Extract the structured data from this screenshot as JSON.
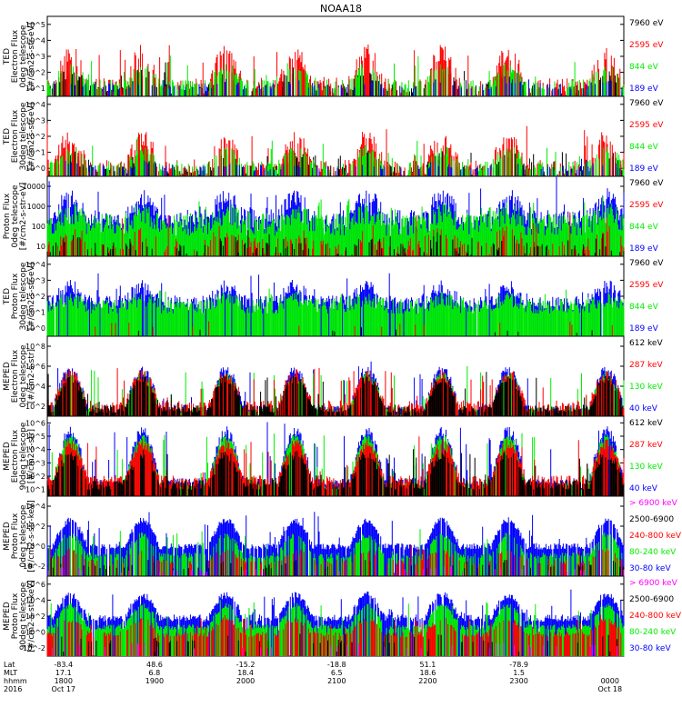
{
  "title": "NOAA18",
  "colors": {
    "black": "#000000",
    "red": "#ff0000",
    "green": "#00ee00",
    "blue": "#0000ff",
    "magenta": "#ff00ff"
  },
  "chart_data": [
    {
      "type": "line",
      "log_y": true,
      "ylabel_lines": [
        "TED",
        "Electron Flux",
        "0deg telescope",
        "[#/cm2-s-str-eV]"
      ],
      "yticks": [
        "10^1",
        "10^2",
        "10^3",
        "10^4",
        "10^5"
      ],
      "ylim_exp": [
        0.6,
        5.3
      ],
      "legend": [
        {
          "label": "7960 eV",
          "color": "black"
        },
        {
          "label": "2595 eV",
          "color": "red"
        },
        {
          "label": "844 eV",
          "color": "green"
        },
        {
          "label": "189 eV",
          "color": "blue"
        }
      ],
      "series": [
        {
          "name": "7960 eV",
          "color": "black",
          "baseline": 1.0,
          "noise": 0.35,
          "peak": 1.4,
          "peak_frac": 0.7,
          "coverage": 0.55
        },
        {
          "name": "2595 eV",
          "color": "red",
          "baseline": 1.2,
          "noise": 0.5,
          "peak": 2.6,
          "peak_frac": 0.75,
          "coverage": 0.6
        },
        {
          "name": "844 eV",
          "color": "green",
          "baseline": 1.3,
          "noise": 0.3,
          "peak": 1.7,
          "peak_frac": 0.6,
          "coverage": 0.4
        },
        {
          "name": "189 eV",
          "color": "blue",
          "baseline": 1.2,
          "noise": 0.2,
          "peak": 0.6,
          "peak_frac": 0.4,
          "coverage": 0.15
        }
      ]
    },
    {
      "type": "line",
      "log_y": true,
      "ylabel_lines": [
        "TED",
        "Electron Flux",
        "30deg telescope",
        "[#/cm2-s-str-eV]"
      ],
      "yticks": [
        "10^0",
        "10^1",
        "10^2",
        "10^3",
        "10^4"
      ],
      "ylim_exp": [
        -0.2,
        4.5
      ],
      "legend": [
        {
          "label": "7960 eV",
          "color": "black"
        },
        {
          "label": "2595 eV",
          "color": "red"
        },
        {
          "label": "844 eV",
          "color": "green"
        },
        {
          "label": "189 eV",
          "color": "blue"
        }
      ],
      "series": [
        {
          "name": "7960 eV",
          "color": "black",
          "baseline": 0.1,
          "noise": 0.35,
          "peak": 1.3,
          "peak_frac": 0.7,
          "coverage": 0.55
        },
        {
          "name": "2595 eV",
          "color": "red",
          "baseline": 0.3,
          "noise": 0.5,
          "peak": 2.4,
          "peak_frac": 0.75,
          "coverage": 0.6
        },
        {
          "name": "844 eV",
          "color": "green",
          "baseline": 0.4,
          "noise": 0.3,
          "peak": 1.6,
          "peak_frac": 0.6,
          "coverage": 0.4
        },
        {
          "name": "189 eV",
          "color": "blue",
          "baseline": 0.3,
          "noise": 0.2,
          "peak": 0.6,
          "peak_frac": 0.4,
          "coverage": 0.15
        }
      ]
    },
    {
      "type": "line",
      "log_y": true,
      "ylabel_lines": [
        "Proton Flux",
        "0deg telescope",
        "[#/cm2-s-str-eV]"
      ],
      "yticks": [
        "10",
        "100",
        "1000",
        "10000"
      ],
      "ylim_exp": [
        0.6,
        4.1
      ],
      "legend": [
        {
          "label": "7960 eV",
          "color": "black"
        },
        {
          "label": "2595 eV",
          "color": "red"
        },
        {
          "label": "844 eV",
          "color": "green"
        },
        {
          "label": "189 eV",
          "color": "blue"
        }
      ],
      "series": [
        {
          "name": "189 eV",
          "color": "blue",
          "baseline": 2.2,
          "noise": 0.45,
          "peak": 1.6,
          "peak_frac": 0.6,
          "coverage": 0.9
        },
        {
          "name": "844 eV",
          "color": "green",
          "baseline": 2.0,
          "noise": 0.5,
          "peak": 0.8,
          "peak_frac": 0.6,
          "coverage": 1.0
        },
        {
          "name": "2595 eV",
          "color": "red",
          "baseline": 1.0,
          "noise": 0.4,
          "peak": 1.3,
          "peak_frac": 0.5,
          "coverage": 0.35
        },
        {
          "name": "7960 eV",
          "color": "black",
          "baseline": 0.8,
          "noise": 0.4,
          "peak": 0.8,
          "peak_frac": 0.5,
          "coverage": 0.3
        }
      ]
    },
    {
      "type": "line",
      "log_y": true,
      "ylabel_lines": [
        "TED",
        "Proton Flux",
        "30deg telescope",
        "[#/cm2-s-str-eV]"
      ],
      "yticks": [
        "10^0",
        "10^1",
        "10^2",
        "10^3",
        "10^4"
      ],
      "ylim_exp": [
        -0.2,
        4.6
      ],
      "legend": [
        {
          "label": "7960 eV",
          "color": "black"
        },
        {
          "label": "2595 eV",
          "color": "red"
        },
        {
          "label": "844 eV",
          "color": "green"
        },
        {
          "label": "189 eV",
          "color": "blue"
        }
      ],
      "series": [
        {
          "name": "189 eV",
          "color": "blue",
          "baseline": 1.8,
          "noise": 0.45,
          "peak": 1.6,
          "peak_frac": 0.6,
          "coverage": 0.85
        },
        {
          "name": "844 eV",
          "color": "green",
          "baseline": 1.6,
          "noise": 0.45,
          "peak": 0.7,
          "peak_frac": 0.6,
          "coverage": 0.95
        },
        {
          "name": "2595 eV",
          "color": "red",
          "baseline": 0.5,
          "noise": 0.2,
          "peak": 0.3,
          "peak_frac": 0.3,
          "coverage": 0.02
        },
        {
          "name": "7960 eV",
          "color": "black",
          "baseline": 0.2,
          "noise": 0.2,
          "peak": 0.2,
          "peak_frac": 0.3,
          "coverage": 0.01
        }
      ]
    },
    {
      "type": "line",
      "log_y": true,
      "ylabel_lines": [
        "MEPED",
        "Electron Flux",
        "0deg telescope",
        "[#/cm2-s-str]"
      ],
      "yticks": [
        "10^2",
        "10^4",
        "10^6",
        "10^8"
      ],
      "ylim_exp": [
        1.6,
        9.2
      ],
      "legend": [
        {
          "label": "612 keV",
          "color": "black"
        },
        {
          "label": "287 keV",
          "color": "red"
        },
        {
          "label": "130 keV",
          "color": "green"
        },
        {
          "label": "40 keV",
          "color": "blue"
        }
      ],
      "series": [
        {
          "name": "40 keV",
          "color": "blue",
          "baseline": 2.2,
          "noise": 0.5,
          "peak": 4.5,
          "peak_frac": 0.85,
          "coverage": 0.9
        },
        {
          "name": "130 keV",
          "color": "green",
          "baseline": 2.1,
          "noise": 0.4,
          "peak": 4.0,
          "peak_frac": 0.85,
          "coverage": 0.95
        },
        {
          "name": "287 keV",
          "color": "red",
          "baseline": 2.5,
          "noise": 0.6,
          "peak": 3.6,
          "peak_frac": 0.85,
          "coverage": 0.8
        },
        {
          "name": "612 keV",
          "color": "black",
          "baseline": 2.3,
          "noise": 0.4,
          "peak": 3.4,
          "peak_frac": 0.85,
          "coverage": 0.7
        }
      ]
    },
    {
      "type": "line",
      "log_y": true,
      "ylabel_lines": [
        "MEPED",
        "Electron Flux",
        "90deg telescope",
        "[#/cm2-s-str]"
      ],
      "yticks": [
        "10^1",
        "10^2",
        "10^3",
        "10^4",
        "10^5",
        "10^6"
      ],
      "ylim_exp": [
        0.6,
        6.8
      ],
      "legend": [
        {
          "label": "612 keV",
          "color": "black"
        },
        {
          "label": "287 keV",
          "color": "red"
        },
        {
          "label": "130 keV",
          "color": "green"
        },
        {
          "label": "40 keV",
          "color": "blue"
        }
      ],
      "series": [
        {
          "name": "40 keV",
          "color": "blue",
          "baseline": 1.6,
          "noise": 0.4,
          "peak": 4.5,
          "peak_frac": 0.9,
          "coverage": 0.9
        },
        {
          "name": "130 keV",
          "color": "green",
          "baseline": 1.4,
          "noise": 0.3,
          "peak": 4.2,
          "peak_frac": 0.9,
          "coverage": 0.95
        },
        {
          "name": "287 keV",
          "color": "red",
          "baseline": 1.8,
          "noise": 0.4,
          "peak": 3.2,
          "peak_frac": 0.9,
          "coverage": 0.85
        },
        {
          "name": "612 keV",
          "color": "black",
          "baseline": 1.5,
          "noise": 0.4,
          "peak": 2.6,
          "peak_frac": 0.9,
          "coverage": 0.7
        }
      ]
    },
    {
      "type": "line",
      "log_y": true,
      "ylabel_lines": [
        "MEPED",
        "Proton Flux",
        "0deg telescope",
        "[#/cm2-s-str-keV]"
      ],
      "yticks": [
        "10^-2",
        "10^0",
        "10^2",
        "10^4"
      ],
      "ylim_exp": [
        -2.6,
        5.2
      ],
      "legend": [
        {
          "label": "> 6900 keV",
          "color": "magenta"
        },
        {
          "label": "2500-6900",
          "color": "black"
        },
        {
          "label": "240-800 keV",
          "color": "red"
        },
        {
          "label": "80-240 keV",
          "color": "green"
        },
        {
          "label": "30-80 keV",
          "color": "blue"
        }
      ],
      "series": [
        {
          "name": "30-80 keV",
          "color": "blue",
          "baseline": 0.3,
          "noise": 0.3,
          "peak": 3.2,
          "peak_frac": 0.8,
          "coverage": 0.9
        },
        {
          "name": "80-240 keV",
          "color": "green",
          "baseline": -0.6,
          "noise": 0.3,
          "peak": 2.5,
          "peak_frac": 0.8,
          "coverage": 0.6
        },
        {
          "name": "240-800 keV",
          "color": "red",
          "baseline": -1.2,
          "noise": 0.3,
          "peak": 1.5,
          "peak_frac": 0.7,
          "coverage": 0.3
        },
        {
          "name": "2500-6900",
          "color": "black",
          "baseline": -1.7,
          "noise": 0.2,
          "peak": 1.0,
          "peak_frac": 0.6,
          "coverage": 0.1
        },
        {
          "name": "> 6900 keV",
          "color": "magenta",
          "baseline": -2.1,
          "noise": 0.2,
          "peak": 0.6,
          "peak_frac": 0.6,
          "coverage": 0.05
        }
      ]
    },
    {
      "type": "line",
      "log_y": true,
      "ylabel_lines": [
        "MEPED",
        "Proton Flux",
        "90deg telescope",
        "[#/cm2-s-str-keV]"
      ],
      "yticks": [
        "10^-2",
        "10^0",
        "10^2",
        "10^4",
        "10^6"
      ],
      "ylim_exp": [
        -2.6,
        6.2
      ],
      "legend": [
        {
          "label": "> 6900 keV",
          "color": "magenta"
        },
        {
          "label": "2500-6900",
          "color": "black"
        },
        {
          "label": "240-800 keV",
          "color": "red"
        },
        {
          "label": "80-240 keV",
          "color": "green"
        },
        {
          "label": "30-80 keV",
          "color": "blue"
        }
      ],
      "series": [
        {
          "name": "30-80 keV",
          "color": "blue",
          "baseline": 1.6,
          "noise": 0.4,
          "peak": 3.0,
          "peak_frac": 0.85,
          "coverage": 0.9
        },
        {
          "name": "80-240 keV",
          "color": "green",
          "baseline": 0.6,
          "noise": 0.3,
          "peak": 2.8,
          "peak_frac": 0.85,
          "coverage": 0.8
        },
        {
          "name": "240-800 keV",
          "color": "red",
          "baseline": -0.2,
          "noise": 0.3,
          "peak": 2.0,
          "peak_frac": 0.8,
          "coverage": 0.5
        },
        {
          "name": "2500-6900",
          "color": "black",
          "baseline": -1.0,
          "noise": 0.2,
          "peak": 1.2,
          "peak_frac": 0.6,
          "coverage": 0.1
        },
        {
          "name": "> 6900 keV",
          "color": "magenta",
          "baseline": -1.6,
          "noise": 0.2,
          "peak": 0.8,
          "peak_frac": 0.6,
          "coverage": 0.05
        }
      ]
    }
  ],
  "x_axis": {
    "row_labels": [
      "Lat",
      "MLT",
      "hhmm",
      "2016"
    ],
    "ticks": [
      {
        "lat": "-83.4",
        "mlt": "17.1",
        "hhmm": "1800",
        "date": "Oct 17"
      },
      {
        "lat": "48.6",
        "mlt": "6.8",
        "hhmm": "1900",
        "date": ""
      },
      {
        "lat": "-15.2",
        "mlt": "18.4",
        "hhmm": "2000",
        "date": ""
      },
      {
        "lat": "-18.8",
        "mlt": "6.5",
        "hhmm": "2100",
        "date": ""
      },
      {
        "lat": "51.1",
        "mlt": "18.6",
        "hhmm": "2200",
        "date": ""
      },
      {
        "lat": "-78.9",
        "mlt": "1.5",
        "hhmm": "2300",
        "date": ""
      },
      {
        "lat": "",
        "mlt": "",
        "hhmm": "0000",
        "date": "Oct 18"
      }
    ]
  }
}
